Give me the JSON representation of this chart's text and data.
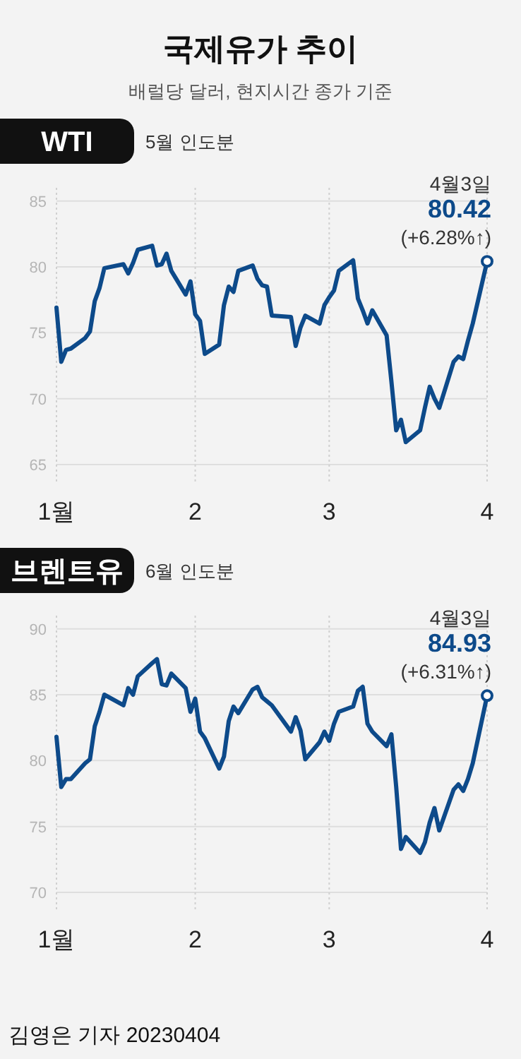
{
  "chart_data": [
    {
      "type": "line",
      "title": "WTI",
      "subtitle": "5월 인도분",
      "grid": true,
      "line_style": "solid",
      "annotations": [
        "국제유가 추이",
        "배럴당 달러, 현지시간 종가 기준",
        "4월3일",
        {
          "text": "80.42",
          "x": "2023-04-03",
          "y": 80.42
        },
        "(+6.28%↑)"
      ],
      "xlim": [
        "2023-01-03",
        "2023-04-03"
      ],
      "xticks": [
        {
          "value": "2023-01-03",
          "label": "1월"
        },
        {
          "value": "2023-02-01",
          "label": "2"
        },
        {
          "value": "2023-03-01",
          "label": "3"
        },
        {
          "value": "2023-04-03",
          "label": "4"
        }
      ],
      "ylim": [
        63.5,
        86
      ],
      "yticks": [
        65,
        70,
        75,
        80,
        85
      ],
      "x": [
        "2023-01-03",
        "2023-01-04",
        "2023-01-05",
        "2023-01-06",
        "2023-01-09",
        "2023-01-10",
        "2023-01-11",
        "2023-01-12",
        "2023-01-13",
        "2023-01-17",
        "2023-01-18",
        "2023-01-19",
        "2023-01-20",
        "2023-01-23",
        "2023-01-24",
        "2023-01-25",
        "2023-01-26",
        "2023-01-27",
        "2023-01-30",
        "2023-01-31",
        "2023-02-01",
        "2023-02-02",
        "2023-02-03",
        "2023-02-06",
        "2023-02-07",
        "2023-02-08",
        "2023-02-09",
        "2023-02-10",
        "2023-02-13",
        "2023-02-14",
        "2023-02-15",
        "2023-02-16",
        "2023-02-17",
        "2023-02-21",
        "2023-02-22",
        "2023-02-23",
        "2023-02-24",
        "2023-02-27",
        "2023-02-28",
        "2023-03-01",
        "2023-03-02",
        "2023-03-03",
        "2023-03-06",
        "2023-03-07",
        "2023-03-08",
        "2023-03-09",
        "2023-03-10",
        "2023-03-13",
        "2023-03-14",
        "2023-03-15",
        "2023-03-16",
        "2023-03-17",
        "2023-03-20",
        "2023-03-21",
        "2023-03-22",
        "2023-03-23",
        "2023-03-24",
        "2023-03-27",
        "2023-03-28",
        "2023-03-29",
        "2023-03-30",
        "2023-03-31",
        "2023-04-03"
      ],
      "series": [
        {
          "color": "#0d4a8a",
          "values": [
            76.9,
            72.8,
            73.7,
            73.8,
            74.6,
            75.1,
            77.4,
            78.4,
            79.9,
            80.2,
            79.5,
            80.3,
            81.3,
            81.6,
            80.1,
            80.2,
            81.0,
            79.7,
            77.9,
            78.9,
            76.4,
            75.9,
            73.4,
            74.1,
            77.1,
            78.5,
            78.1,
            79.7,
            80.1,
            79.1,
            78.6,
            78.5,
            76.3,
            76.2,
            74.0,
            75.4,
            76.3,
            75.7,
            77.1,
            77.7,
            78.2,
            79.7,
            80.5,
            77.6,
            76.7,
            75.7,
            76.7,
            74.8,
            71.3,
            67.6,
            68.4,
            66.7,
            67.6,
            69.3,
            70.9,
            70.0,
            69.3,
            72.8,
            73.2,
            73.0,
            74.4,
            75.7,
            80.42
          ]
        }
      ]
    },
    {
      "type": "line",
      "title": "브렌트유",
      "subtitle": "6월 인도분",
      "grid": true,
      "line_style": "solid",
      "annotations": [
        "4월3일",
        {
          "text": "84.93",
          "x": "2023-04-03",
          "y": 84.93
        },
        "(+6.31%↑)",
        "김영은 기자  20230404"
      ],
      "xlim": [
        "2023-01-03",
        "2023-04-03"
      ],
      "xticks": [
        {
          "value": "2023-01-03",
          "label": "1월"
        },
        {
          "value": "2023-02-01",
          "label": "2"
        },
        {
          "value": "2023-03-01",
          "label": "3"
        },
        {
          "value": "2023-04-03",
          "label": "4"
        }
      ],
      "ylim": [
        68.5,
        91
      ],
      "yticks": [
        70,
        75,
        80,
        85,
        90
      ],
      "x": [
        "2023-01-03",
        "2023-01-04",
        "2023-01-05",
        "2023-01-06",
        "2023-01-09",
        "2023-01-10",
        "2023-01-11",
        "2023-01-12",
        "2023-01-13",
        "2023-01-17",
        "2023-01-18",
        "2023-01-19",
        "2023-01-20",
        "2023-01-23",
        "2023-01-24",
        "2023-01-25",
        "2023-01-26",
        "2023-01-27",
        "2023-01-30",
        "2023-01-31",
        "2023-02-01",
        "2023-02-02",
        "2023-02-03",
        "2023-02-06",
        "2023-02-07",
        "2023-02-08",
        "2023-02-09",
        "2023-02-10",
        "2023-02-13",
        "2023-02-14",
        "2023-02-15",
        "2023-02-16",
        "2023-02-17",
        "2023-02-21",
        "2023-02-22",
        "2023-02-23",
        "2023-02-24",
        "2023-02-27",
        "2023-02-28",
        "2023-03-01",
        "2023-03-02",
        "2023-03-03",
        "2023-03-06",
        "2023-03-07",
        "2023-03-08",
        "2023-03-09",
        "2023-03-10",
        "2023-03-13",
        "2023-03-14",
        "2023-03-15",
        "2023-03-16",
        "2023-03-17",
        "2023-03-20",
        "2023-03-21",
        "2023-03-22",
        "2023-03-23",
        "2023-03-24",
        "2023-03-27",
        "2023-03-28",
        "2023-03-29",
        "2023-03-30",
        "2023-03-31",
        "2023-04-03"
      ],
      "series": [
        {
          "color": "#0d4a8a",
          "values": [
            81.8,
            78.0,
            78.6,
            78.6,
            79.8,
            80.1,
            82.6,
            83.7,
            85.0,
            84.2,
            85.5,
            85.0,
            86.4,
            87.4,
            87.7,
            85.8,
            85.7,
            86.6,
            85.5,
            83.7,
            84.7,
            82.2,
            81.7,
            79.4,
            80.3,
            83.0,
            84.1,
            83.6,
            85.4,
            85.6,
            84.8,
            84.5,
            84.2,
            82.2,
            83.3,
            82.3,
            80.1,
            81.4,
            82.2,
            81.5,
            82.8,
            83.7,
            84.1,
            85.3,
            85.6,
            82.8,
            82.2,
            81.1,
            82.0,
            78.0,
            73.3,
            74.2,
            73.0,
            73.8,
            75.3,
            76.4,
            74.7,
            77.8,
            78.2,
            77.7,
            78.6,
            79.8,
            84.93
          ]
        }
      ]
    }
  ]
}
